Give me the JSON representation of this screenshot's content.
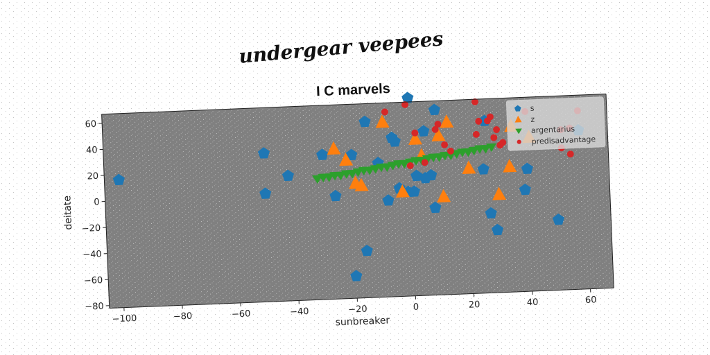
{
  "suptitle": "undergear veepees",
  "chart_data": {
    "type": "scatter",
    "title": "I C marvels",
    "xlabel": "sunbreaker",
    "ylabel": "deitate",
    "xlim": [
      -105,
      68
    ],
    "ylim": [
      -82,
      67
    ],
    "xticks": [
      -100,
      -80,
      -60,
      -40,
      -20,
      0,
      20,
      40,
      60
    ],
    "yticks": [
      -80,
      -60,
      -40,
      -20,
      0,
      20,
      40,
      60
    ],
    "grid": false,
    "legend_position": "top-right",
    "background": "#808080",
    "series": [
      {
        "name": "s",
        "marker": "pentagon",
        "color": "#1f77b4",
        "points": [
          [
            -100,
            16
          ],
          [
            -50,
            32
          ],
          [
            -50,
            1
          ],
          [
            -42,
            14
          ],
          [
            -30,
            29
          ],
          [
            -26,
            -3
          ],
          [
            -20,
            28
          ],
          [
            -20,
            -65
          ],
          [
            -16,
            -46
          ],
          [
            -15,
            53
          ],
          [
            -11,
            21
          ],
          [
            -8,
            -8
          ],
          [
            -6,
            40
          ],
          [
            -5,
            37
          ],
          [
            -4,
            1
          ],
          [
            -1,
            -2
          ],
          [
            0,
            70
          ],
          [
            1,
            -2
          ],
          [
            2,
            10
          ],
          [
            5,
            8
          ],
          [
            7,
            10
          ],
          [
            8,
            -15
          ],
          [
            9,
            60
          ],
          [
            5,
            44
          ],
          [
            25,
            13
          ],
          [
            26,
            50
          ],
          [
            27,
            -21
          ],
          [
            29,
            -34
          ],
          [
            39,
            -4
          ],
          [
            40,
            12
          ],
          [
            50,
            -28
          ],
          [
            58,
            40
          ]
        ]
      },
      {
        "name": "z",
        "marker": "triangle-up",
        "color": "#ff7f0e",
        "points": [
          [
            -26,
            33
          ],
          [
            -22,
            24
          ],
          [
            -19,
            6
          ],
          [
            -17,
            4
          ],
          [
            -9,
            52
          ],
          [
            -3,
            -2
          ],
          [
            2,
            38
          ],
          [
            4,
            25
          ],
          [
            10,
            40
          ],
          [
            11,
            -7
          ],
          [
            13,
            50
          ],
          [
            20,
            14
          ],
          [
            30,
            -7
          ],
          [
            34,
            14
          ],
          [
            35,
            45
          ],
          [
            41,
            36
          ]
        ]
      },
      {
        "name": "argentarius",
        "marker": "triangle-down",
        "color": "#2ca02c",
        "points": [
          [
            -32,
            11
          ],
          [
            -30,
            12
          ],
          [
            -28,
            12
          ],
          [
            -26,
            13
          ],
          [
            -24,
            13
          ],
          [
            -22,
            14
          ],
          [
            -20,
            14
          ],
          [
            -18,
            15
          ],
          [
            -16,
            16
          ],
          [
            -14,
            16
          ],
          [
            -12,
            17
          ],
          [
            -10,
            18
          ],
          [
            -8,
            18
          ],
          [
            -6,
            19
          ],
          [
            -4,
            20
          ],
          [
            -2,
            20
          ],
          [
            0,
            21
          ],
          [
            2,
            22
          ],
          [
            4,
            22
          ],
          [
            6,
            23
          ],
          [
            8,
            24
          ],
          [
            10,
            24
          ],
          [
            12,
            25
          ],
          [
            14,
            25
          ],
          [
            16,
            26
          ],
          [
            18,
            27
          ],
          [
            20,
            27
          ],
          [
            22,
            28
          ],
          [
            24,
            29
          ],
          [
            26,
            29
          ],
          [
            28,
            30
          ]
        ]
      },
      {
        "name": "predisadvantage",
        "marker": "circle",
        "color": "#d62728",
        "points": [
          [
            -8,
            60
          ],
          [
            -1,
            65
          ],
          [
            0,
            18
          ],
          [
            2,
            43
          ],
          [
            5,
            20
          ],
          [
            9,
            45
          ],
          [
            10,
            49
          ],
          [
            12,
            33
          ],
          [
            14,
            28
          ],
          [
            23,
            65
          ],
          [
            24,
            50
          ],
          [
            23,
            40
          ],
          [
            27,
            50
          ],
          [
            28,
            53
          ],
          [
            29,
            37
          ],
          [
            30,
            43
          ],
          [
            31,
            31
          ],
          [
            32,
            33
          ],
          [
            52,
            41
          ],
          [
            52,
            27
          ],
          [
            55,
            42
          ],
          [
            55,
            22
          ],
          [
            58,
            55
          ],
          [
            40,
            56
          ]
        ]
      }
    ]
  }
}
